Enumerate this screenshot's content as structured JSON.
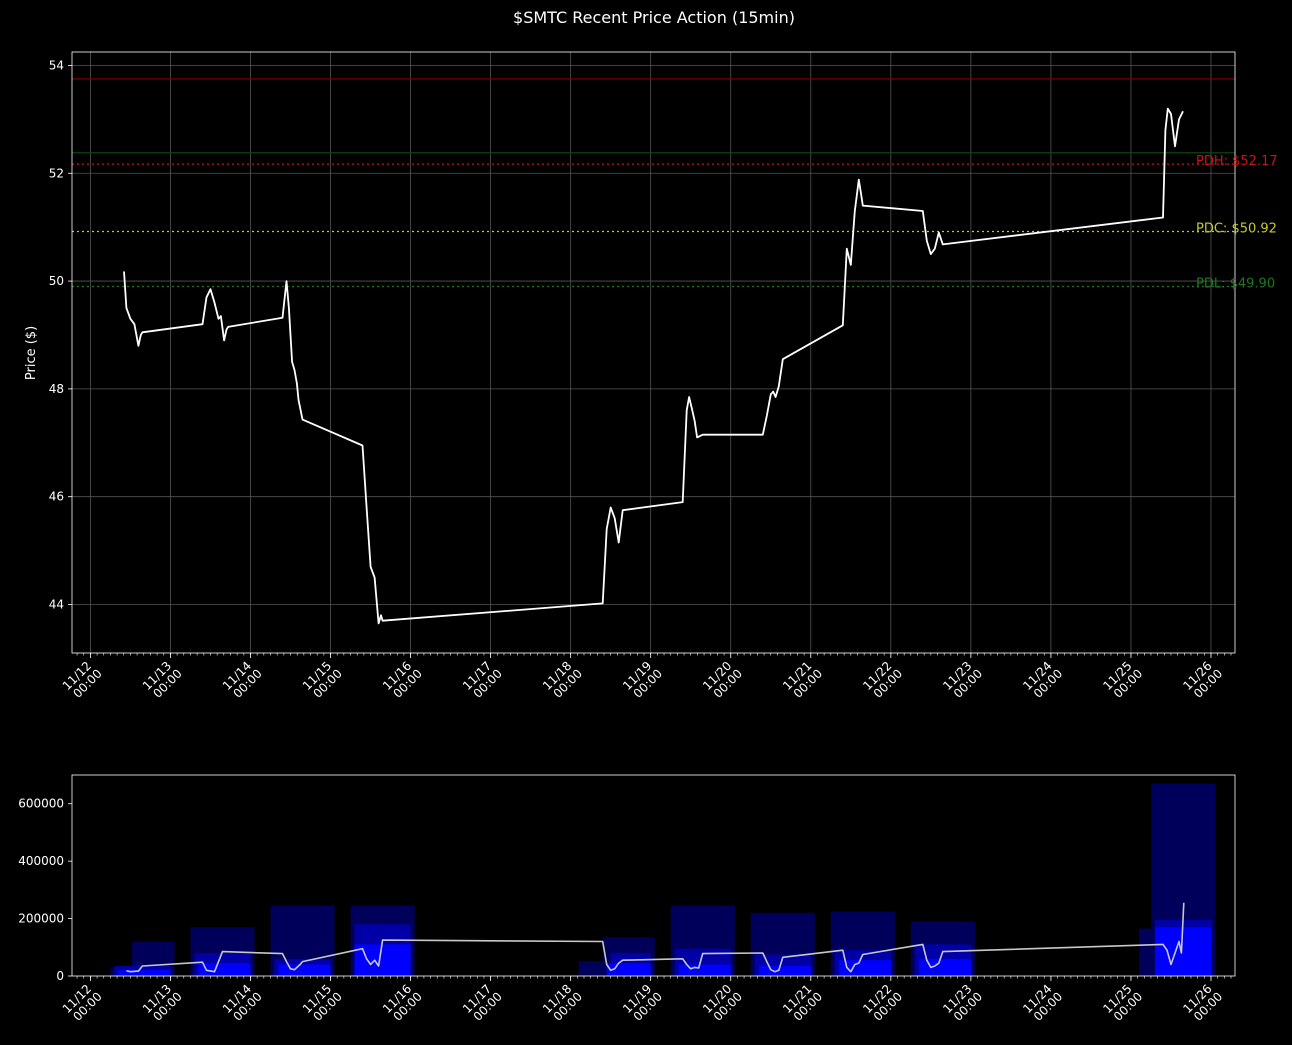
{
  "chart_data": [
    {
      "type": "line",
      "title": "$SMTC Recent Price Action (15min)",
      "ylabel": "Price ($)",
      "xlabel": "",
      "ylim": [
        43.1,
        54.25
      ],
      "xlim": [
        11.77,
        26.3
      ],
      "yticks": [
        44,
        46,
        48,
        50,
        52,
        54
      ],
      "x_tick_labels": [
        "11/12\n00:00",
        "11/13\n00:00",
        "11/14\n00:00",
        "11/15\n00:00",
        "11/16\n00:00",
        "11/17\n00:00",
        "11/18\n00:00",
        "11/19\n00:00",
        "11/20\n00:00",
        "11/21\n00:00",
        "11/22\n00:00",
        "11/23\n00:00",
        "11/24\n00:00",
        "11/25\n00:00",
        "11/26\n00:00"
      ],
      "x_tick_days": [
        12,
        13,
        14,
        15,
        16,
        17,
        18,
        19,
        20,
        21,
        22,
        23,
        24,
        25,
        26
      ],
      "grid": true,
      "reference_lines": [
        {
          "label": "",
          "value": 53.75,
          "color": "#8b0000",
          "style": "solid"
        },
        {
          "label": "",
          "value": 52.38,
          "color": "#0f4d0f",
          "style": "solid"
        },
        {
          "label": "PDH: $52.17",
          "value": 52.17,
          "color": "#c81414",
          "style": "dotted"
        },
        {
          "label": "PDC: $50.92",
          "value": 50.92,
          "color": "#c8c832",
          "style": "dotted"
        },
        {
          "label": "PDL: $49.90",
          "value": 49.9,
          "color": "#1e7a1e",
          "style": "dotted"
        }
      ],
      "series": [
        {
          "color": "#ffffff",
          "points": [
            [
              12.42,
              50.18
            ],
            [
              12.45,
              49.5
            ],
            [
              12.5,
              49.3
            ],
            [
              12.55,
              49.2
            ],
            [
              12.6,
              48.8
            ],
            [
              12.63,
              49.0
            ],
            [
              12.65,
              49.05
            ],
            [
              13.4,
              49.2
            ],
            [
              13.45,
              49.7
            ],
            [
              13.5,
              49.85
            ],
            [
              13.55,
              49.6
            ],
            [
              13.6,
              49.3
            ],
            [
              13.63,
              49.35
            ],
            [
              13.67,
              48.9
            ],
            [
              13.7,
              49.1
            ],
            [
              13.72,
              49.15
            ],
            [
              14.4,
              49.32
            ],
            [
              14.45,
              50.0
            ],
            [
              14.48,
              49.5
            ],
            [
              14.52,
              48.5
            ],
            [
              14.55,
              48.35
            ],
            [
              14.58,
              48.1
            ],
            [
              14.6,
              47.8
            ],
            [
              14.65,
              47.43
            ],
            [
              15.4,
              46.95
            ],
            [
              15.45,
              45.8
            ],
            [
              15.5,
              44.7
            ],
            [
              15.55,
              44.5
            ],
            [
              15.6,
              43.65
            ],
            [
              15.63,
              43.8
            ],
            [
              15.65,
              43.7
            ],
            [
              18.4,
              44.02
            ],
            [
              18.45,
              45.4
            ],
            [
              18.5,
              45.8
            ],
            [
              18.55,
              45.6
            ],
            [
              18.6,
              45.15
            ],
            [
              18.65,
              45.75
            ],
            [
              19.4,
              45.9
            ],
            [
              19.45,
              47.6
            ],
            [
              19.48,
              47.85
            ],
            [
              19.52,
              47.6
            ],
            [
              19.55,
              47.4
            ],
            [
              19.58,
              47.1
            ],
            [
              19.65,
              47.15
            ],
            [
              20.4,
              47.15
            ],
            [
              20.45,
              47.5
            ],
            [
              20.5,
              47.9
            ],
            [
              20.53,
              47.95
            ],
            [
              20.56,
              47.85
            ],
            [
              20.6,
              48.05
            ],
            [
              20.65,
              48.55
            ],
            [
              21.4,
              49.18
            ],
            [
              21.45,
              50.6
            ],
            [
              21.5,
              50.3
            ],
            [
              21.55,
              51.3
            ],
            [
              21.6,
              51.88
            ],
            [
              21.63,
              51.6
            ],
            [
              21.65,
              51.4
            ],
            [
              22.4,
              51.3
            ],
            [
              22.45,
              50.75
            ],
            [
              22.5,
              50.5
            ],
            [
              22.55,
              50.6
            ],
            [
              22.6,
              50.9
            ],
            [
              22.65,
              50.68
            ],
            [
              25.4,
              51.18
            ],
            [
              25.43,
              52.8
            ],
            [
              25.46,
              53.2
            ],
            [
              25.5,
              53.1
            ],
            [
              25.55,
              52.5
            ],
            [
              25.6,
              53.0
            ],
            [
              25.65,
              53.15
            ]
          ]
        }
      ]
    },
    {
      "type": "bar",
      "title": "",
      "xlabel": "",
      "ylabel": "",
      "ylim": [
        0,
        700000
      ],
      "xlim": [
        11.77,
        26.3
      ],
      "yticks": [
        0,
        200000,
        400000,
        600000
      ],
      "ytick_labels": [
        "0",
        "200000",
        "400000",
        "600000"
      ],
      "x_tick_labels": [
        "11/12\n00:00",
        "11/13\n00:00",
        "11/14\n00:00",
        "11/15\n00:00",
        "11/16\n00:00",
        "11/17\n00:00",
        "11/18\n00:00",
        "11/19\n00:00",
        "11/20\n00:00",
        "11/21\n00:00",
        "11/22\n00:00",
        "11/23\n00:00",
        "11/24\n00:00",
        "11/25\n00:00",
        "11/26\n00:00"
      ],
      "x_tick_days": [
        12,
        13,
        14,
        15,
        16,
        17,
        18,
        19,
        20,
        21,
        22,
        23,
        24,
        25,
        26
      ],
      "colors": {
        "dark": "#00005a",
        "mid": "#0000b4",
        "bright": "#0000ff",
        "line": "#c8c8c8"
      },
      "dark_bars": [
        {
          "x0": 12.25,
          "x1": 13.05,
          "v": 28000
        },
        {
          "x0": 12.25,
          "x1": 13.05,
          "v": 120000,
          "x_start": 12.52
        },
        {
          "x0": 13.25,
          "x1": 14.05,
          "v": 170000
        },
        {
          "x0": 14.25,
          "x1": 15.05,
          "v": 245000
        },
        {
          "x0": 15.25,
          "x1": 16.05,
          "v": 245000
        },
        {
          "x0": 18.1,
          "x1": 18.95,
          "v": 52000
        },
        {
          "x0": 18.4,
          "x1": 19.05,
          "v": 135000
        },
        {
          "x0": 19.25,
          "x1": 20.05,
          "v": 245000
        },
        {
          "x0": 20.25,
          "x1": 21.05,
          "v": 220000
        },
        {
          "x0": 21.25,
          "x1": 22.05,
          "v": 225000
        },
        {
          "x0": 22.25,
          "x1": 23.05,
          "v": 190000
        },
        {
          "x0": 25.1,
          "x1": 25.7,
          "v": 165000
        },
        {
          "x0": 25.25,
          "x1": 26.05,
          "v": 670000
        }
      ],
      "mid_bars": [
        {
          "x0": 12.3,
          "x1": 13.0,
          "v": 35000
        },
        {
          "x0": 13.3,
          "x1": 14.0,
          "v": 80000
        },
        {
          "x0": 14.3,
          "x1": 15.0,
          "v": 60000
        },
        {
          "x0": 15.3,
          "x1": 16.0,
          "v": 180000
        },
        {
          "x0": 18.5,
          "x1": 19.0,
          "v": 80000
        },
        {
          "x0": 19.3,
          "x1": 20.0,
          "v": 95000
        },
        {
          "x0": 20.3,
          "x1": 21.0,
          "v": 75000
        },
        {
          "x0": 21.3,
          "x1": 22.0,
          "v": 90000
        },
        {
          "x0": 22.3,
          "x1": 23.0,
          "v": 110000
        },
        {
          "x0": 25.3,
          "x1": 26.0,
          "v": 195000
        }
      ],
      "bright_bars": [
        {
          "x0": 12.35,
          "x1": 13.0,
          "v": 22000
        },
        {
          "x0": 13.35,
          "x1": 14.0,
          "v": 45000
        },
        {
          "x0": 14.35,
          "x1": 15.0,
          "v": 40000
        },
        {
          "x0": 15.3,
          "x1": 16.0,
          "v": 110000
        },
        {
          "x0": 18.45,
          "x1": 19.0,
          "v": 45000
        },
        {
          "x0": 19.35,
          "x1": 20.0,
          "v": 40000
        },
        {
          "x0": 20.35,
          "x1": 21.0,
          "v": 35000
        },
        {
          "x0": 21.35,
          "x1": 22.0,
          "v": 55000
        },
        {
          "x0": 22.35,
          "x1": 23.0,
          "v": 60000
        },
        {
          "x0": 25.3,
          "x1": 26.0,
          "v": 170000
        }
      ],
      "series": [
        {
          "color": "#c8c8c8",
          "points": [
            [
              12.45,
              18000
            ],
            [
              12.5,
              15000
            ],
            [
              12.6,
              17000
            ],
            [
              12.65,
              35000
            ],
            [
              13.4,
              48000
            ],
            [
              13.45,
              20000
            ],
            [
              13.55,
              15000
            ],
            [
              13.65,
              85000
            ],
            [
              14.4,
              78000
            ],
            [
              14.45,
              50000
            ],
            [
              14.5,
              25000
            ],
            [
              14.55,
              22000
            ],
            [
              14.62,
              40000
            ],
            [
              14.65,
              50000
            ],
            [
              15.4,
              95000
            ],
            [
              15.45,
              60000
            ],
            [
              15.5,
              40000
            ],
            [
              15.55,
              55000
            ],
            [
              15.6,
              35000
            ],
            [
              15.65,
              125000
            ],
            [
              18.4,
              120000
            ],
            [
              18.45,
              40000
            ],
            [
              18.5,
              20000
            ],
            [
              18.55,
              25000
            ],
            [
              18.6,
              45000
            ],
            [
              18.65,
              55000
            ],
            [
              19.4,
              60000
            ],
            [
              19.45,
              40000
            ],
            [
              19.5,
              25000
            ],
            [
              19.55,
              30000
            ],
            [
              19.6,
              28000
            ],
            [
              19.65,
              78000
            ],
            [
              20.4,
              80000
            ],
            [
              20.45,
              50000
            ],
            [
              20.5,
              22000
            ],
            [
              20.55,
              15000
            ],
            [
              20.6,
              20000
            ],
            [
              20.65,
              65000
            ],
            [
              21.4,
              90000
            ],
            [
              21.45,
              30000
            ],
            [
              21.5,
              15000
            ],
            [
              21.55,
              40000
            ],
            [
              21.6,
              45000
            ],
            [
              21.65,
              75000
            ],
            [
              22.4,
              110000
            ],
            [
              22.45,
              55000
            ],
            [
              22.5,
              30000
            ],
            [
              22.55,
              35000
            ],
            [
              22.6,
              45000
            ],
            [
              22.65,
              85000
            ],
            [
              25.4,
              110000
            ],
            [
              25.45,
              90000
            ],
            [
              25.5,
              40000
            ],
            [
              25.55,
              80000
            ],
            [
              25.6,
              120000
            ],
            [
              25.63,
              80000
            ],
            [
              25.66,
              255000
            ]
          ]
        }
      ]
    }
  ]
}
